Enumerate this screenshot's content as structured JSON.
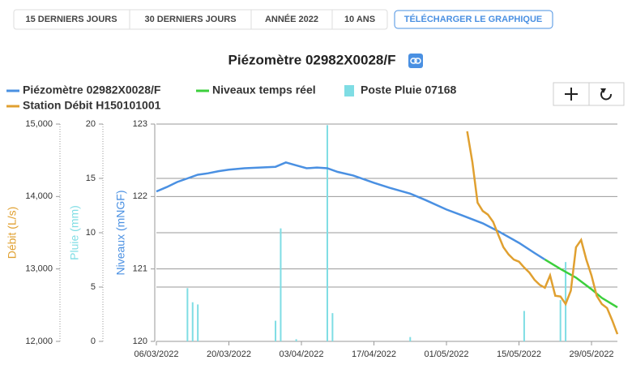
{
  "toolbar": {
    "buttons": [
      "15 DERNIERS JOURS",
      "30 DERNIERS JOURS",
      "ANNÉE 2022",
      "10 ANS"
    ],
    "download": "TÉLÉCHARGER LE GRAPHIQUE"
  },
  "chart_data": {
    "type": "line",
    "title": "Piézomètre 02982X0028/F",
    "xlim": [
      "06/03/2022",
      "03/06/2022"
    ],
    "xticks": [
      "06/03/2022",
      "20/03/2022",
      "03/04/2022",
      "17/04/2022",
      "01/05/2022",
      "15/05/2022",
      "29/05/2022"
    ],
    "ylabel": "Débit (L/s)",
    "ylim": [
      12000,
      15000
    ],
    "yticks": [
      {
        "value": 12000,
        "label": "12,000"
      },
      {
        "value": 13000,
        "label": "13,000"
      },
      {
        "value": 14000,
        "label": "14,000"
      },
      {
        "value": 15000,
        "label": "15,000"
      }
    ],
    "y2label": "Pluie (mm)",
    "y2lim": [
      0,
      20
    ],
    "y2ticks": [
      0,
      5,
      10,
      15,
      20
    ],
    "y3label": "Niveaux (mNGF)",
    "y3lim": [
      120,
      123
    ],
    "y3ticks": [
      120,
      121,
      122,
      123
    ],
    "grid": true,
    "series": [
      {
        "name": "Piézomètre 02982X0028/F",
        "color": "#4a90e2",
        "axis": "y3",
        "x": [
          "06/03/2022",
          "08/03/2022",
          "10/03/2022",
          "12/03/2022",
          "14/03/2022",
          "16/03/2022",
          "18/03/2022",
          "20/03/2022",
          "23/03/2022",
          "26/03/2022",
          "29/03/2022",
          "31/03/2022",
          "02/04/2022",
          "04/04/2022",
          "06/04/2022",
          "08/04/2022",
          "10/04/2022",
          "13/04/2022",
          "17/04/2022",
          "20/04/2022",
          "24/04/2022",
          "27/04/2022",
          "01/05/2022",
          "04/05/2022",
          "08/05/2022",
          "11/05/2022",
          "15/05/2022",
          "18/05/2022",
          "20/05/2022"
        ],
        "values": [
          122.07,
          122.13,
          122.2,
          122.25,
          122.3,
          122.32,
          122.35,
          122.37,
          122.39,
          122.4,
          122.41,
          122.47,
          122.43,
          122.39,
          122.4,
          122.39,
          122.34,
          122.29,
          122.19,
          122.12,
          122.04,
          121.95,
          121.82,
          121.74,
          121.63,
          121.52,
          121.36,
          121.22,
          121.13
        ]
      },
      {
        "name": "Niveaux temps réel",
        "color": "#3ccf3c",
        "axis": "y3",
        "x": [
          "20/05/2022",
          "23/05/2022",
          "26/05/2022",
          "29/05/2022",
          "31/05/2022",
          "03/06/2022"
        ],
        "values": [
          121.13,
          121.0,
          120.88,
          120.72,
          120.6,
          120.47
        ]
      },
      {
        "name": "Poste Pluie 07168",
        "color": "#7fdde4",
        "axis": "y2",
        "type": "bar",
        "x": [
          "12/03/2022",
          "13/03/2022",
          "14/03/2022",
          "29/03/2022",
          "30/03/2022",
          "02/04/2022",
          "08/04/2022",
          "09/04/2022",
          "24/04/2022",
          "16/05/2022",
          "23/05/2022",
          "24/05/2022"
        ],
        "values": [
          4.9,
          3.6,
          3.4,
          1.9,
          10.4,
          0.2,
          19.9,
          2.6,
          0.4,
          2.8,
          3.8,
          7.3
        ]
      },
      {
        "name": "Station Débit H150101001",
        "color": "#e0a030",
        "axis": "y",
        "x": [
          "05/05/2022",
          "06/05/2022",
          "07/05/2022",
          "08/05/2022",
          "09/05/2022",
          "10/05/2022",
          "11/05/2022",
          "12/05/2022",
          "13/05/2022",
          "14/05/2022",
          "15/05/2022",
          "16/05/2022",
          "17/05/2022",
          "18/05/2022",
          "19/05/2022",
          "20/05/2022",
          "21/05/2022",
          "22/05/2022",
          "23/05/2022",
          "24/05/2022",
          "25/05/2022",
          "26/05/2022",
          "27/05/2022",
          "28/05/2022",
          "29/05/2022",
          "30/05/2022",
          "31/05/2022",
          "01/06/2022",
          "02/06/2022",
          "03/06/2022"
        ],
        "values": [
          14900,
          14475,
          13915,
          13800,
          13750,
          13650,
          13470,
          13300,
          13200,
          13130,
          13100,
          13020,
          12950,
          12850,
          12780,
          12740,
          12910,
          12630,
          12620,
          12515,
          12700,
          13300,
          13400,
          13130,
          12910,
          12630,
          12515,
          12460,
          12290,
          12100
        ]
      }
    ]
  }
}
